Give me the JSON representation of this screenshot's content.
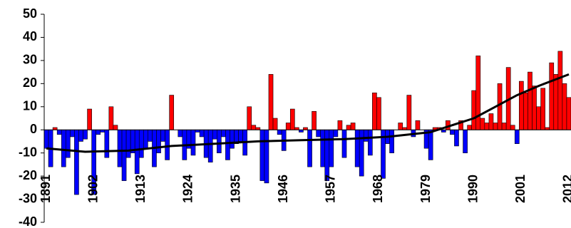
{
  "chart_data": {
    "type": "bar",
    "categories": [
      "1891",
      null,
      null,
      null,
      null,
      null,
      null,
      null,
      null,
      null,
      null,
      "1902",
      null,
      null,
      null,
      null,
      null,
      null,
      null,
      null,
      null,
      null,
      "1913",
      null,
      null,
      null,
      null,
      null,
      null,
      null,
      null,
      null,
      null,
      "1924",
      null,
      null,
      null,
      null,
      null,
      null,
      null,
      null,
      null,
      null,
      "1935",
      null,
      null,
      null,
      null,
      null,
      null,
      null,
      null,
      null,
      null,
      "1946",
      null,
      null,
      null,
      null,
      null,
      null,
      null,
      null,
      null,
      null,
      "1957",
      null,
      null,
      null,
      null,
      null,
      null,
      null,
      null,
      null,
      null,
      "1968",
      null,
      null,
      null,
      null,
      null,
      null,
      null,
      null,
      null,
      null,
      "1979",
      null,
      null,
      null,
      null,
      null,
      null,
      null,
      null,
      null,
      null,
      "1990",
      null,
      null,
      null,
      null,
      null,
      null,
      null,
      null,
      null,
      null,
      "2001",
      null,
      null,
      null,
      null,
      null,
      null,
      null,
      null,
      null,
      null,
      "2012"
    ],
    "values": [
      -8,
      -16,
      1,
      -2,
      -16,
      -12,
      -3,
      -28,
      -5,
      -4,
      9,
      -28,
      -2,
      -1,
      -12,
      10,
      2,
      -16,
      -22,
      -12,
      -10,
      -19,
      -12,
      -8,
      -5,
      -16,
      -10,
      -5,
      -13,
      15,
      0,
      -3,
      -13,
      -8,
      -11,
      -1,
      -3,
      -12,
      -14,
      -4,
      -10,
      -3,
      -13,
      -8,
      -6,
      -5,
      -11,
      10,
      2,
      1,
      -22,
      -23,
      24,
      5,
      -2,
      -9,
      3,
      9,
      1,
      -1,
      1,
      -16,
      8,
      -3,
      -16,
      -22,
      -16,
      -3,
      4,
      -12,
      2,
      3,
      -16,
      -20,
      -5,
      -11,
      16,
      14,
      -21,
      -6,
      -10,
      0,
      3,
      1,
      15,
      -3,
      4,
      0,
      -8,
      -13,
      1,
      1,
      -1,
      4,
      -2,
      -7,
      4,
      -10,
      2,
      17,
      32,
      5,
      3,
      7,
      3,
      20,
      3,
      27,
      2,
      -6,
      21,
      16,
      25,
      19,
      10,
      18,
      1,
      29,
      24,
      34,
      20,
      14
    ],
    "positive_color": "#ff0000",
    "negative_color": "#0000ff",
    "trend": {
      "x": [
        1891,
        1900,
        1910,
        1920,
        1930,
        1940,
        1950,
        1960,
        1970,
        1980,
        1985,
        1990,
        1995,
        2000,
        2005,
        2012
      ],
      "values": [
        -8,
        -9.5,
        -9,
        -7,
        -6,
        -5,
        -4.5,
        -4,
        -3,
        -1,
        2,
        5,
        10,
        15,
        19,
        24
      ],
      "color": "#000000"
    },
    "ylim": [
      -40,
      50
    ],
    "yticks": [
      -40,
      -30,
      -20,
      -10,
      0,
      10,
      20,
      30,
      40,
      50
    ]
  }
}
